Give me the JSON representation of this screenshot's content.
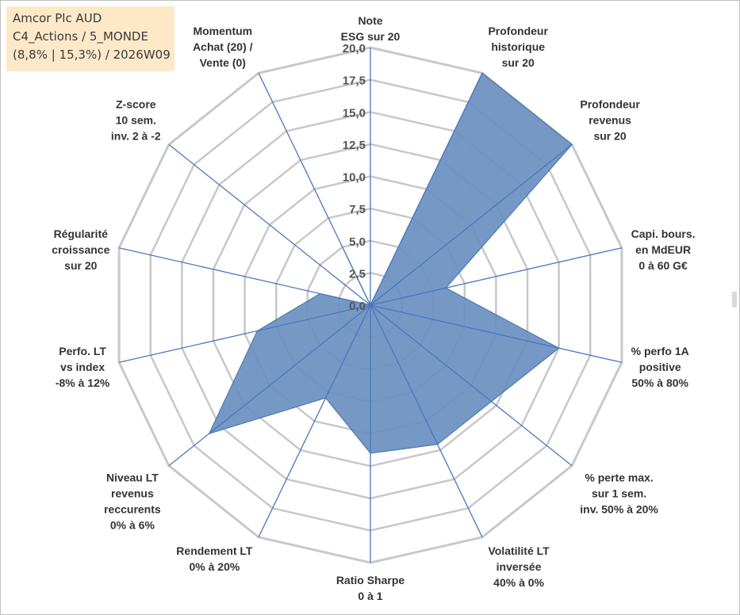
{
  "title_box": {
    "line1": "Amcor Plc AUD",
    "line2": "C4_Actions / 5_MONDE",
    "line3": "(8,8% | 15,3%) / 2026W09"
  },
  "chart_data": {
    "type": "radar",
    "title": "Amcor Plc AUD",
    "rmin": 0,
    "rmax": 20,
    "ticks": [
      "0,0",
      "2,5",
      "5,0",
      "7,5",
      "10,0",
      "12,5",
      "15,0",
      "17,5",
      "20,0"
    ],
    "tick_values": [
      0,
      2.5,
      5,
      7.5,
      10,
      12.5,
      15,
      17.5,
      20
    ],
    "axes": [
      {
        "label": [
          "Note",
          "ESG sur 20"
        ],
        "value": 0
      },
      {
        "label": [
          "Profondeur",
          "historique",
          "sur 20"
        ],
        "value": 20
      },
      {
        "label": [
          "Profondeur",
          "revenus",
          "sur 20"
        ],
        "value": 20
      },
      {
        "label": [
          "Capi. bours.",
          "en MdEUR",
          "0 à 60 G€"
        ],
        "value": 6
      },
      {
        "label": [
          "% perfo 1A",
          "positive",
          "50% à 80%"
        ],
        "value": 15
      },
      {
        "label": [
          "% perte max.",
          "sur 1 sem.",
          "inv. 50% à 20%"
        ],
        "value": 12
      },
      {
        "label": [
          "Volatilité LT",
          "inversée",
          "40% à 0%"
        ],
        "value": 12
      },
      {
        "label": [
          "Ratio Sharpe",
          "0 à 1"
        ],
        "value": 11.5
      },
      {
        "label": [
          "Rendement LT",
          "0% à 20%"
        ],
        "value": 8
      },
      {
        "label": [
          "Niveau LT",
          "revenus",
          "reccurents",
          "0% à 6%"
        ],
        "value": 16
      },
      {
        "label": [
          "Perfo. LT",
          "vs index",
          "-8% à 12%"
        ],
        "value": 9
      },
      {
        "label": [
          "Régularité",
          "croissance",
          "sur 20"
        ],
        "value": 4
      },
      {
        "label": [
          "Z-score",
          "10 sem.",
          "inv. 2 à -2"
        ],
        "value": 0
      },
      {
        "label": [
          "Momentum",
          "Achat (20) /",
          "Vente (0)"
        ],
        "value": 4.5
      }
    ],
    "colors": {
      "fill": "#6a8fbf",
      "stroke": "#4f7bb4",
      "grid": "#c8c8c8",
      "spoke": "#4a78be"
    }
  }
}
